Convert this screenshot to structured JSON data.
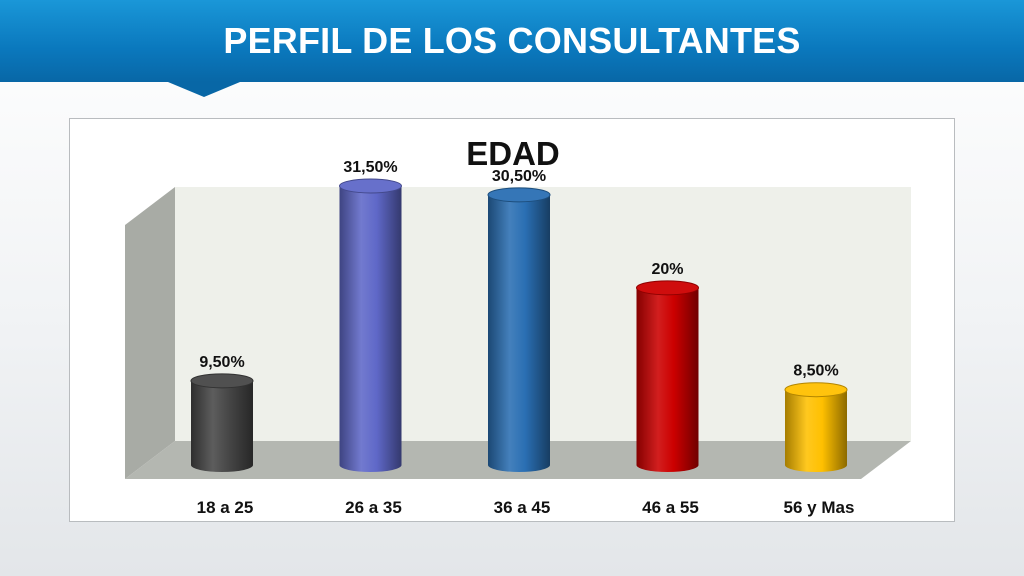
{
  "slide": {
    "title": "PERFIL DE LOS CONSULTANTES"
  },
  "chart_data": {
    "type": "bar",
    "title": "EDAD",
    "categories": [
      "18 a 25",
      "26 a 35",
      "36 a 45",
      "46 a 55",
      "56 y Mas"
    ],
    "values": [
      9.5,
      31.5,
      30.5,
      20,
      8.5
    ],
    "data_labels": [
      "9,50%",
      "31,50%",
      "30,50%",
      "20%",
      "8,50%"
    ],
    "unit": "%",
    "ylim": [
      0,
      35
    ],
    "grid": false,
    "legend": "none",
    "colors": [
      "#474747",
      "#5f68c8",
      "#2a6fb3",
      "#cc0000",
      "#ffc000"
    ],
    "wall_colors": {
      "back": "#eef0ea",
      "side": "#a8aba5",
      "floor": "#b4b7b1"
    }
  }
}
